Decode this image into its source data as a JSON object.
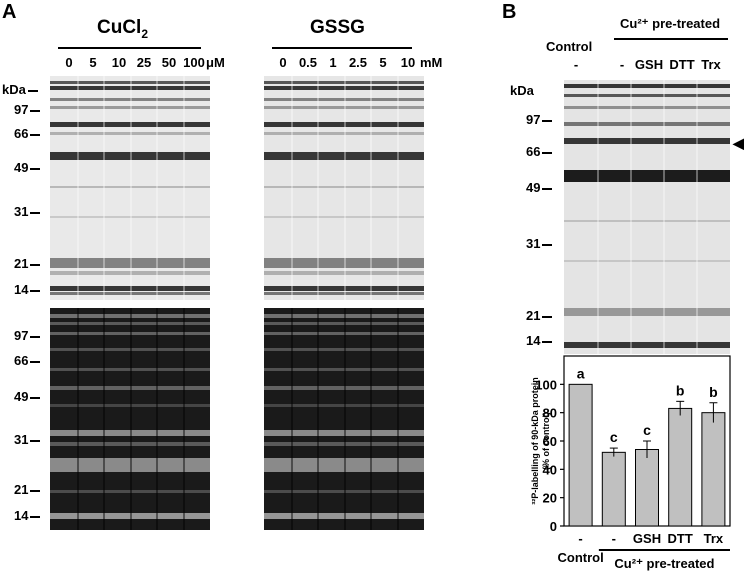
{
  "panel_a": {
    "label": "A",
    "cucl2": {
      "title": "CuCl",
      "title_sub": "2",
      "lanes": [
        "0",
        "5",
        "10",
        "25",
        "50",
        "100"
      ],
      "unit": "μM"
    },
    "gssg": {
      "title": "GSSG",
      "lanes": [
        "0",
        "0.5",
        "1",
        "2.5",
        "5",
        "10"
      ],
      "unit": "mM"
    },
    "kda_label": "kDa",
    "markers_top": [
      "97",
      "66",
      "49",
      "31",
      "21",
      "14"
    ],
    "markers_bottom": [
      "97",
      "66",
      "49",
      "31",
      "21",
      "14"
    ]
  },
  "panel_b": {
    "label": "B",
    "pretreated_label": "Cu²⁺ pre-treated",
    "control_label": "Control",
    "lanes": [
      "-",
      "-",
      "GSH",
      "DTT",
      "Trx"
    ],
    "kda_label": "kDa",
    "markers": [
      "97",
      "66",
      "49",
      "31",
      "21",
      "14"
    ]
  },
  "chart_data": {
    "type": "bar",
    "categories": [
      "-",
      "-",
      "GSH",
      "DTT",
      "Trx"
    ],
    "values": [
      100,
      52,
      54,
      83,
      80
    ],
    "errors": [
      0,
      3,
      6,
      5,
      7
    ],
    "letters": [
      "a",
      "c",
      "c",
      "b",
      "b"
    ],
    "ylabel_line1": "³²P-labelling of 90-kDa protein",
    "ylabel_line2": "(% of control)",
    "yticks": [
      "0",
      "20",
      "40",
      "60",
      "80",
      "100"
    ],
    "ylim": [
      0,
      120
    ],
    "xlabel_control": "Control",
    "xlabel_group": "Cu²⁺ pre-treated",
    "bar_color": "#c0c0c0"
  }
}
